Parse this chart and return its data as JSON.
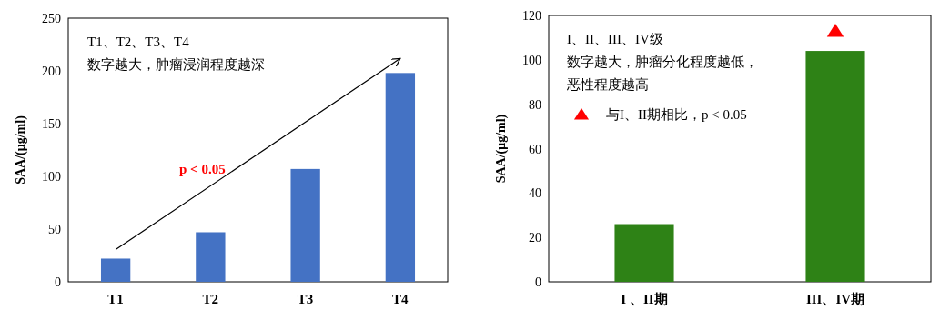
{
  "chart_data": [
    {
      "type": "bar",
      "categories": [
        "T1",
        "T2",
        "T3",
        "T4"
      ],
      "ylabel": "SAA/(μg/ml)",
      "series": [
        {
          "color": "#4472c4",
          "values": [
            22,
            47,
            107,
            198
          ]
        }
      ],
      "ylim": [
        0,
        250
      ],
      "yticks": [
        0,
        50,
        100,
        150,
        200,
        250
      ],
      "grid": false,
      "annotations": [
        "T1、T2、T3、T4",
        "数字越大，肿瘤浸润程度越深",
        "p < 0.05"
      ]
    },
    {
      "type": "bar",
      "categories": [
        "I 、II期",
        "III、IV期"
      ],
      "ylabel": "SAA/(μg/ml)",
      "series": [
        {
          "color": "#2e8216",
          "values": [
            26,
            104
          ]
        },
        {
          "type": "scatter",
          "name": "与I、II期相比，p < 0.05",
          "color": "#ff0000",
          "marker": "triangle",
          "x": [
            "III、IV期"
          ],
          "values": [
            113
          ]
        }
      ],
      "ylim": [
        0,
        120
      ],
      "yticks": [
        0,
        20,
        40,
        60,
        80,
        100,
        120
      ],
      "grid": false,
      "legend": "top left",
      "annotations": [
        "I、II、III、IV级",
        "数字越大，肿瘤分化程度越低，",
        "恶性程度越高"
      ]
    }
  ]
}
